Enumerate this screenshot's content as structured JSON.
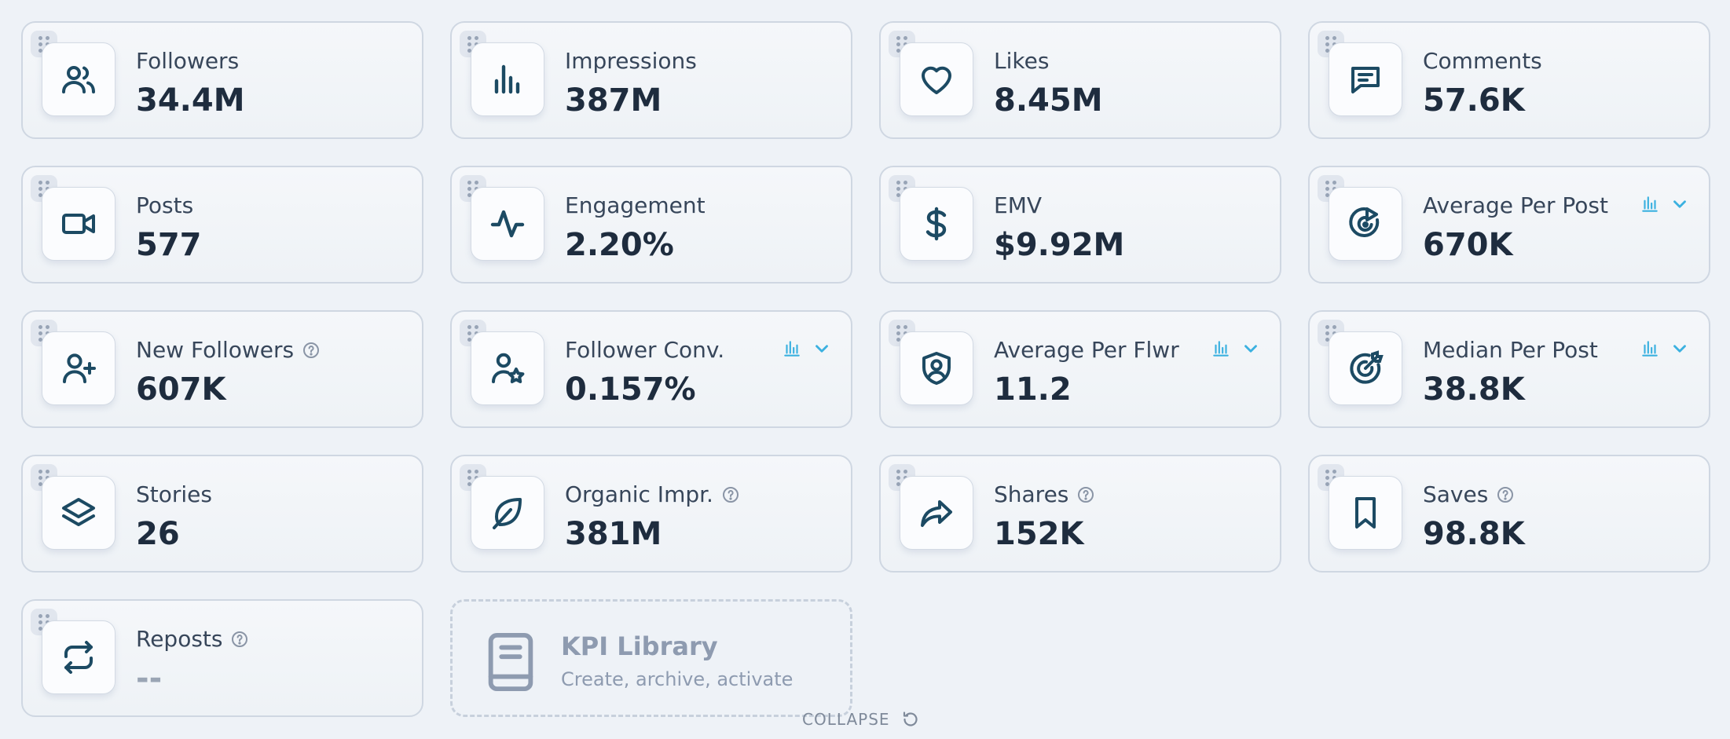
{
  "colors": {
    "icon": "#1c4a63",
    "accent": "#3bb1e0",
    "muted": "#8e9bb0"
  },
  "cards": [
    {
      "label": "Followers",
      "value": "34.4M",
      "icon": "users-icon"
    },
    {
      "label": "Impressions",
      "value": "387M",
      "icon": "bar-chart-icon"
    },
    {
      "label": "Likes",
      "value": "8.45M",
      "icon": "heart-icon"
    },
    {
      "label": "Comments",
      "value": "57.6K",
      "icon": "comment-icon"
    },
    {
      "label": "Posts",
      "value": "577",
      "icon": "video-camera-icon"
    },
    {
      "label": "Engagement",
      "value": "2.20%",
      "icon": "activity-icon"
    },
    {
      "label": "EMV",
      "value": "$9.92M",
      "icon": "dollar-icon"
    },
    {
      "label": "Average Per Post",
      "value": "670K",
      "icon": "target-play-icon"
    },
    {
      "label": "New Followers",
      "value": "607K",
      "icon": "user-plus-icon"
    },
    {
      "label": "Follower Conv.",
      "value": "0.157%",
      "icon": "user-star-icon"
    },
    {
      "label": "Average Per Flwr",
      "value": "11.2",
      "icon": "shield-user-icon"
    },
    {
      "label": "Median Per Post",
      "value": "38.8K",
      "icon": "target-icon"
    },
    {
      "label": "Stories",
      "value": "26",
      "icon": "layers-icon"
    },
    {
      "label": "Organic Impr.",
      "value": "381M",
      "icon": "leaf-icon"
    },
    {
      "label": "Shares",
      "value": "152K",
      "icon": "share-icon"
    },
    {
      "label": "Saves",
      "value": "98.8K",
      "icon": "bookmark-icon"
    },
    {
      "label": "Reposts",
      "value": "--",
      "icon": "repeat-icon"
    }
  ],
  "library": {
    "title": "KPI Library",
    "subtitle": "Create, archive, activate",
    "icon": "book-icon"
  },
  "collapse": {
    "label": "COLLAPSE",
    "icon": "reset-icon"
  }
}
